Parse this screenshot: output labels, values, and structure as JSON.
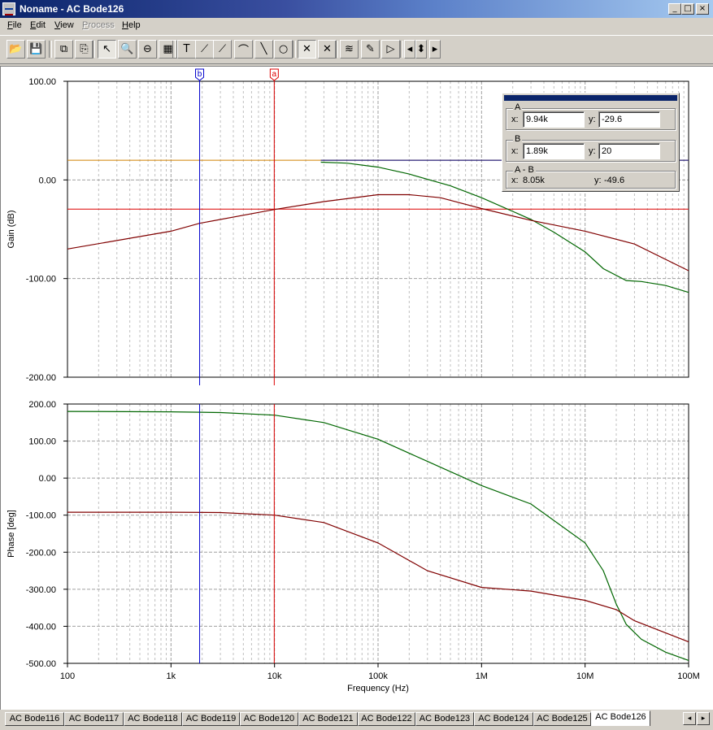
{
  "window": {
    "title": "Noname - AC Bode126",
    "controls": [
      "_",
      "□",
      "×"
    ]
  },
  "menu": [
    {
      "label": "File",
      "enabled": true
    },
    {
      "label": "Edit",
      "enabled": true
    },
    {
      "label": "View",
      "enabled": true
    },
    {
      "label": "Process",
      "enabled": false
    },
    {
      "label": "Help",
      "enabled": true
    }
  ],
  "toolbar": {
    "buttons": [
      {
        "name": "open-folder-icon",
        "glyph": "📂"
      },
      {
        "name": "save-disk-icon",
        "glyph": "💾"
      },
      {
        "name": "copy-icon",
        "glyph": "⧉"
      },
      {
        "name": "copy-special-icon",
        "glyph": "⎘"
      },
      {
        "name": "select-arrow-icon",
        "glyph": "↖",
        "pressed": true
      },
      {
        "name": "zoom-in-icon",
        "glyph": "🔍"
      },
      {
        "name": "zoom-100-icon",
        "glyph": "⊖"
      },
      {
        "name": "grid-icon",
        "glyph": "▦"
      },
      {
        "name": "text-tool-icon",
        "glyph": "T"
      },
      {
        "name": "curve-label-icon",
        "glyph": "⟋"
      },
      {
        "name": "curve-label2-icon",
        "glyph": "⟋"
      },
      {
        "name": "curve-edit-icon",
        "glyph": "⌒"
      },
      {
        "name": "line-tool-icon",
        "glyph": "╲"
      },
      {
        "name": "circle-tool-icon",
        "glyph": "○"
      },
      {
        "name": "cursor-a-icon",
        "glyph": "✕",
        "pressed": true
      },
      {
        "name": "cursor-b-icon",
        "glyph": "✕"
      },
      {
        "name": "add-curve-icon",
        "glyph": "≋"
      },
      {
        "name": "probe-icon",
        "glyph": "✎"
      },
      {
        "name": "play-icon",
        "glyph": "▷"
      },
      {
        "name": "move-left-icon",
        "glyph": "◂"
      },
      {
        "name": "move-updown-icon",
        "glyph": "⬍"
      },
      {
        "name": "move-right-icon",
        "glyph": "▸"
      }
    ]
  },
  "colors": {
    "curve1": "#006600",
    "curve2": "#800000",
    "cursorA": "#dd0000",
    "cursorB": "#0000cc",
    "refline": "#d08000",
    "bline": "#000080"
  },
  "cursors": {
    "a_label": "a",
    "b_label": "b"
  },
  "cursor_panel": {
    "A": {
      "title": "A",
      "x_label": "x:",
      "x": "9.94k",
      "y_label": "y:",
      "y": "-29.6"
    },
    "B": {
      "title": "B",
      "x_label": "x:",
      "x": "1.89k",
      "y_label": "y:",
      "y": "20"
    },
    "AB": {
      "title": "A - B",
      "x_label": "x:",
      "x": "8.05k",
      "y_label": "y:",
      "y": "-49.6"
    }
  },
  "chart_data": [
    {
      "type": "line",
      "ylabel": "Gain (dB)",
      "xscale": "log",
      "xlim": [
        100,
        100000000
      ],
      "ylim": [
        -200,
        100
      ],
      "yticks": [
        "100.00",
        "0.00",
        "-100.00",
        "-200.00"
      ],
      "grid": true,
      "series": [
        {
          "x": [
            28000,
            50000,
            100000,
            200000,
            500000,
            1000000,
            3000000,
            5000000,
            10000000,
            15000000,
            25000000,
            35000000,
            60000000,
            100000000
          ],
          "y": [
            18,
            17,
            13,
            6,
            -6,
            -18,
            -40,
            -53,
            -73,
            -90,
            -102,
            -103,
            -107,
            -114
          ]
        },
        {
          "x": [
            100,
            1000,
            1890,
            10000,
            30000,
            100000,
            200000,
            400000,
            1000000,
            3000000,
            10000000,
            30000000,
            100000000
          ],
          "y": [
            -70,
            -52,
            -44,
            -30,
            -22,
            -15,
            -15,
            -18,
            -29,
            -41,
            -52,
            -65,
            -92
          ]
        }
      ],
      "hlines": [
        20,
        -29.6
      ]
    },
    {
      "type": "line",
      "ylabel": "Phase [deg]",
      "xlabel": "Frequency (Hz)",
      "xscale": "log",
      "xlim": [
        100,
        100000000
      ],
      "ylim": [
        -500,
        200
      ],
      "yticks": [
        "200.00",
        "100.00",
        "0.00",
        "-100.00",
        "-200.00",
        "-300.00",
        "-400.00",
        "-500.00"
      ],
      "xticks": [
        "100",
        "1k",
        "10k",
        "100k",
        "1M",
        "10M",
        "100M"
      ],
      "grid": true,
      "series": [
        {
          "x": [
            100,
            1000,
            3000,
            10000,
            30000,
            100000,
            300000,
            1000000,
            3000000,
            10000000,
            15000000,
            20000000,
            25000000,
            35000000,
            60000000,
            100000000
          ],
          "y": [
            180,
            179,
            177,
            170,
            150,
            105,
            45,
            -20,
            -70,
            -175,
            -250,
            -340,
            -395,
            -435,
            -470,
            -492
          ]
        },
        {
          "x": [
            100,
            1000,
            3000,
            10000,
            30000,
            100000,
            300000,
            1000000,
            3000000,
            10000000,
            20000000,
            30000000,
            100000000
          ],
          "y": [
            -92,
            -92,
            -93,
            -100,
            -120,
            -175,
            -250,
            -295,
            -305,
            -330,
            -355,
            -385,
            -442
          ]
        }
      ]
    }
  ],
  "tabs": [
    "AC Bode116",
    "AC Bode117",
    "AC Bode118",
    "AC Bode119",
    "AC Bode120",
    "AC Bode121",
    "AC Bode122",
    "AC Bode123",
    "AC Bode124",
    "AC Bode125",
    "AC Bode126"
  ],
  "active_tab": 10,
  "tab_nav": [
    "◂",
    "▸"
  ]
}
